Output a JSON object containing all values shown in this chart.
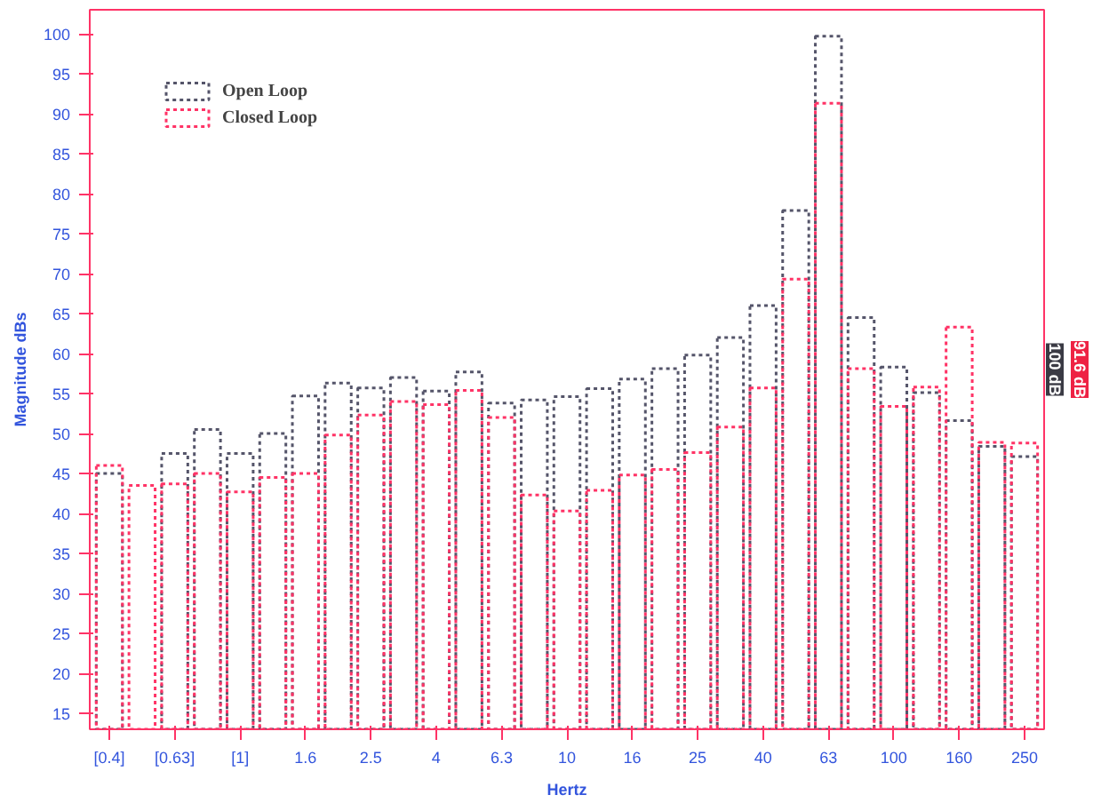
{
  "chart_data": {
    "type": "bar",
    "xlabel": "Hertz",
    "ylabel": "Magnitude dBs",
    "categories": [
      "[0.4]",
      null,
      "[0.63]",
      null,
      "[1]",
      null,
      "1.6",
      null,
      "2.5",
      null,
      "4",
      null,
      "6.3",
      null,
      "10",
      null,
      "16",
      null,
      "25",
      null,
      "40",
      null,
      "63",
      null,
      "100",
      null,
      "160",
      null,
      "250"
    ],
    "series": [
      {
        "name": "Open Loop",
        "color": "#55556a",
        "values": [
          45,
          null,
          47.5,
          50.5,
          47.5,
          50,
          54.7,
          56.3,
          55.7,
          57,
          55.3,
          57.7,
          53.8,
          54.2,
          54.6,
          55.6,
          56.8,
          58.1,
          59.8,
          62,
          66,
          77.9,
          99.7,
          64.5,
          58.3,
          55.1,
          51.6,
          48.4,
          47.1
        ]
      },
      {
        "name": "Closed Loop",
        "color": "#ff3366",
        "values": [
          46,
          43.5,
          43.7,
          45,
          42.7,
          44.5,
          45,
          49.8,
          52.3,
          54,
          53.6,
          55.4,
          52,
          42.3,
          40.3,
          42.9,
          44.8,
          45.5,
          47.6,
          50.8,
          55.7,
          69.3,
          91.3,
          58.1,
          53.4,
          55.8,
          63.3,
          48.9,
          48.8
        ]
      }
    ],
    "ylim": [
      13,
      103
    ],
    "yticks": [
      15,
      20,
      25,
      30,
      35,
      40,
      45,
      50,
      55,
      60,
      65,
      70,
      75,
      80,
      85,
      90,
      95,
      100
    ],
    "grid": false,
    "legend": "top left",
    "line_style": "dotted",
    "annotations": [
      "100 dB",
      "91.6 dB"
    ]
  }
}
